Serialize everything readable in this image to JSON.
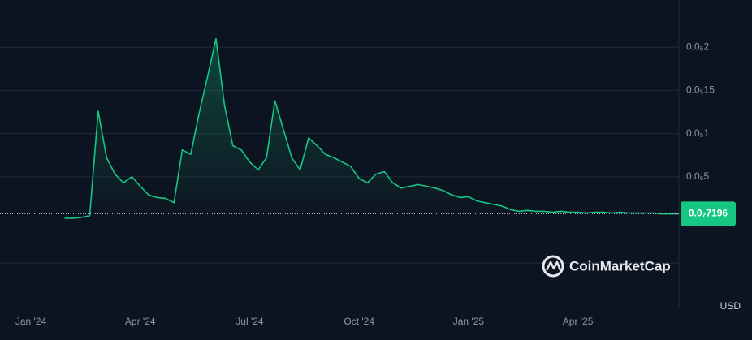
{
  "chart_data": {
    "type": "line",
    "categories": [
      "Jan '24",
      null,
      null,
      null,
      null,
      null,
      null,
      null,
      null,
      null,
      null,
      null,
      null,
      "Apr '24",
      null,
      null,
      null,
      null,
      null,
      null,
      null,
      null,
      null,
      null,
      null,
      null,
      "Jul '24",
      null,
      null,
      null,
      null,
      null,
      null,
      null,
      null,
      null,
      null,
      null,
      null,
      "Oct '24",
      null,
      null,
      null,
      null,
      null,
      null,
      null,
      null,
      null,
      null,
      null,
      null,
      "Jan '25",
      null,
      null,
      null,
      null,
      null,
      null,
      null,
      null,
      null,
      null,
      null,
      null,
      "Apr '25",
      null,
      null,
      null,
      null,
      null,
      null,
      null,
      null,
      null,
      null,
      null,
      null
    ],
    "series": [
      {
        "color": "#16c784",
        "values": [
          null,
          null,
          null,
          null,
          2e-08,
          2e-08,
          3e-08,
          5e-08,
          1.26e-06,
          7.2e-07,
          5.3e-07,
          4.3e-07,
          5e-07,
          3.9e-07,
          2.9e-07,
          2.6e-07,
          2.5e-07,
          2e-07,
          8.1e-07,
          7.6e-07,
          1.24e-06,
          1.66e-06,
          2.1e-06,
          1.33e-06,
          8.6e-07,
          8.1e-07,
          6.7e-07,
          5.8e-07,
          7.2e-07,
          1.38e-06,
          1.05e-06,
          7.2e-07,
          5.8e-07,
          9.5e-07,
          8.6e-07,
          7.6e-07,
          7.2e-07,
          6.7e-07,
          6.2e-07,
          4.8e-07,
          4.3e-07,
          5.3e-07,
          5.6e-07,
          4.3e-07,
          3.7e-07,
          3.9e-07,
          4.1e-07,
          3.9e-07,
          3.7e-07,
          3.4e-07,
          2.9e-07,
          2.6e-07,
          2.7e-07,
          2.2e-07,
          2e-07,
          1.8e-07,
          1.6e-07,
          1.2e-07,
          1e-07,
          1.1e-07,
          1e-07,
          1e-07,
          9e-08,
          1e-07,
          9e-08,
          9e-08,
          8e-08,
          9e-08,
          9e-08,
          8e-08,
          9e-08,
          8e-08,
          8e-08,
          8e-08,
          8e-08,
          7e-08,
          7e-08,
          7.196e-08
        ]
      }
    ],
    "ylim": [
      -4.6e-07,
      2.5e-06
    ],
    "yticks": [
      {
        "value": 5e-07,
        "label": "0.0₆5"
      },
      {
        "value": 1e-06,
        "label": "0.0₅1"
      },
      {
        "value": 1.5e-06,
        "label": "0.0₅15"
      },
      {
        "value": 2e-06,
        "label": "0.0₅2"
      }
    ],
    "grid": true,
    "current_price": 7.196e-08,
    "current_price_label": "0.0₇7196",
    "currency": "USD",
    "watermark": "CoinMarketCap"
  }
}
